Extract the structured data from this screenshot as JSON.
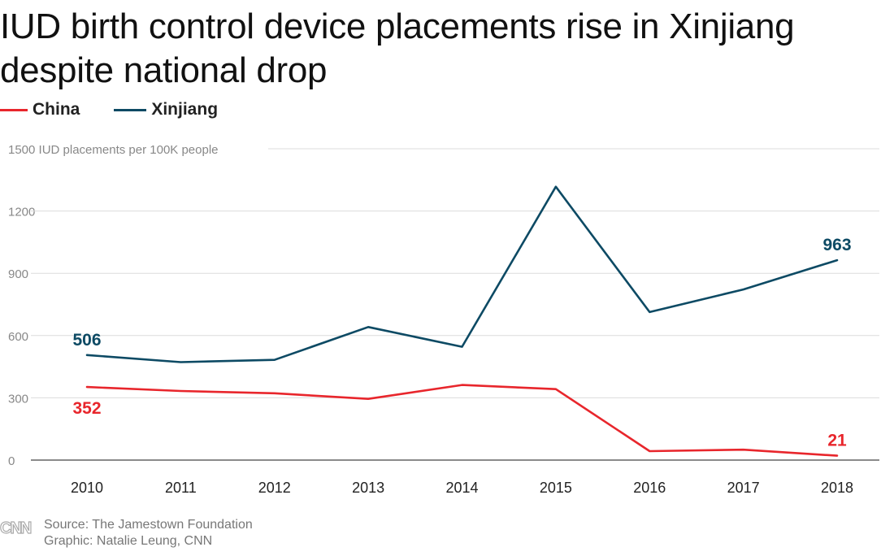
{
  "chart_data": {
    "type": "line",
    "title": "IUD birth control device placements rise in Xinjiang despite national drop",
    "ylabel": "IUD placements per 100K people",
    "xlabel": "",
    "categories": [
      "2010",
      "2011",
      "2012",
      "2013",
      "2014",
      "2015",
      "2016",
      "2017",
      "2018"
    ],
    "ylim": [
      0,
      1500
    ],
    "yticks": [
      {
        "value": 0,
        "label": "0"
      },
      {
        "value": 300,
        "label": "300"
      },
      {
        "value": 600,
        "label": "600"
      },
      {
        "value": 900,
        "label": "900"
      },
      {
        "value": 1200,
        "label": "1200"
      },
      {
        "value": 1500,
        "label": "1500 IUD placements per 100K people"
      }
    ],
    "grid": true,
    "legend_position": "top-left",
    "series": [
      {
        "name": "China",
        "color": "#e8262c",
        "values": [
          352,
          333,
          322,
          295,
          362,
          342,
          43,
          50,
          21
        ],
        "labels": [
          {
            "index": 0,
            "text": "352",
            "placement": "below"
          },
          {
            "index": 8,
            "text": "21",
            "placement": "above"
          }
        ]
      },
      {
        "name": "Xinjiang",
        "color": "#0d4a64",
        "values": [
          506,
          472,
          483,
          641,
          546,
          1317,
          713,
          822,
          963
        ],
        "labels": [
          {
            "index": 0,
            "text": "506",
            "placement": "above"
          },
          {
            "index": 8,
            "text": "963",
            "placement": "above"
          }
        ]
      }
    ]
  },
  "footer": {
    "logo_text": "CNN",
    "source": "Source: The Jamestown Foundation",
    "credit": "Graphic: Natalie Leung, CNN"
  },
  "colors": {
    "grid": "#dcdcdc",
    "axis": "#444444",
    "tick_label": "#888888",
    "x_tick_label": "#222222",
    "footer_text": "#777777",
    "logo": "#aaaaaa"
  }
}
